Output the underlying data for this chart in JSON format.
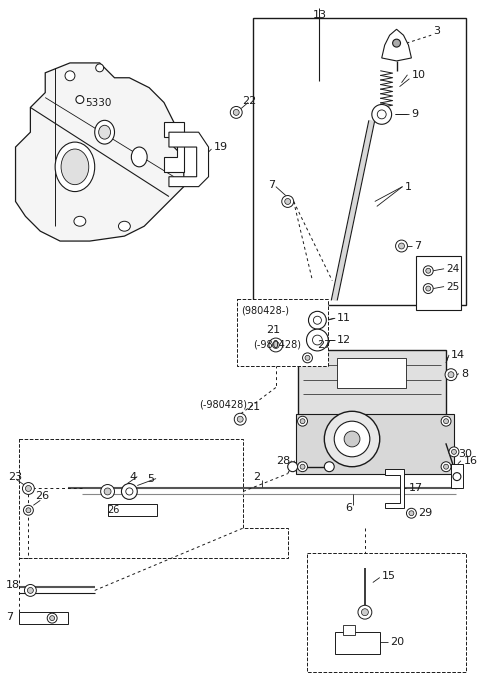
{
  "bg": "#ffffff",
  "lc": "#1a1a1a",
  "fig_w": 4.8,
  "fig_h": 6.86,
  "dpi": 100
}
